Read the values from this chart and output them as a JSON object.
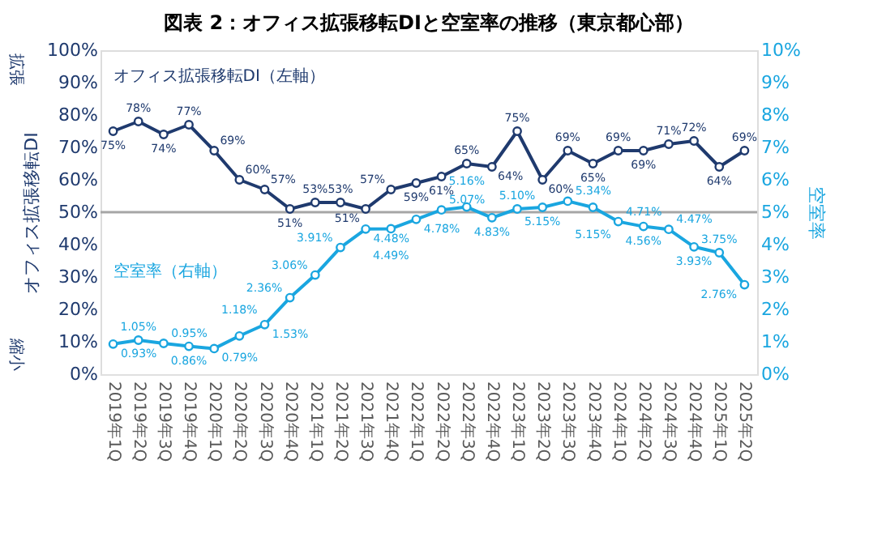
{
  "chart_data": {
    "type": "line",
    "title": "図表 2：オフィス拡張移転DIと空室率の推移（東京都心部）",
    "ylabel": "オフィス拡張移転DI",
    "y2label": "空室率",
    "annotations": [
      "拡張",
      "縮小"
    ],
    "categories": [
      "2019年1Q",
      "2019年2Q",
      "2019年3Q",
      "2019年4Q",
      "2020年1Q",
      "2020年2Q",
      "2020年3Q",
      "2020年4Q",
      "2021年1Q",
      "2021年2Q",
      "2021年3Q",
      "2021年4Q",
      "2022年1Q",
      "2022年2Q",
      "2022年3Q",
      "2022年4Q",
      "2023年1Q",
      "2023年2Q",
      "2023年3Q",
      "2023年4Q",
      "2024年1Q",
      "2024年2Q",
      "2024年3Q",
      "2024年4Q",
      "2025年1Q",
      "2025年2Q"
    ],
    "series": [
      {
        "name": "オフィス拡張移転DI（左軸）",
        "color": "#1f3a6e",
        "axis": "y",
        "values": [
          75,
          78,
          74,
          77,
          69,
          60,
          57,
          51,
          53,
          53,
          51,
          57,
          59,
          61,
          65,
          64,
          75,
          60,
          69,
          65,
          69,
          69,
          71,
          72,
          64,
          69
        ],
        "value_labels": [
          "75%",
          "78%",
          "74%",
          "77%",
          "69%",
          "60%",
          "57%",
          "51%",
          "53%",
          "53%",
          "51%",
          "57%",
          "59%",
          "61%",
          "65%",
          "64%",
          "75%",
          "60%",
          "69%",
          "65%",
          "69%",
          "69%",
          "71%",
          "72%",
          "64%",
          "69%"
        ]
      },
      {
        "name": "空室率（右軸）",
        "color": "#1aa6e0",
        "axis": "y2",
        "values": [
          0.93,
          1.05,
          0.95,
          0.86,
          0.79,
          1.18,
          1.53,
          2.36,
          3.06,
          3.91,
          4.48,
          4.49,
          4.78,
          5.07,
          5.16,
          4.83,
          5.1,
          5.15,
          5.34,
          5.15,
          4.71,
          4.56,
          4.47,
          3.93,
          3.75,
          2.76
        ],
        "value_labels": [
          "0.93%",
          "1.05%",
          "0.95%",
          "0.86%",
          "0.79%",
          "1.18%",
          "1.53%",
          "2.36%",
          "3.06%",
          "3.91%",
          "4.48%",
          "4.49%",
          "4.78%",
          "5.07%",
          "5.16%",
          "4.83%",
          "5.10%",
          "5.15%",
          "5.34%",
          "5.15%",
          "4.71%",
          "4.56%",
          "4.47%",
          "3.93%",
          "3.75%",
          "2.76%"
        ]
      }
    ],
    "ylim": [
      0,
      100
    ],
    "yticks": [
      {
        "value": 0,
        "label": "0%"
      },
      {
        "value": 10,
        "label": "10%"
      },
      {
        "value": 20,
        "label": "20%"
      },
      {
        "value": 30,
        "label": "30%"
      },
      {
        "value": 40,
        "label": "40%"
      },
      {
        "value": 50,
        "label": "50%"
      },
      {
        "value": 60,
        "label": "60%"
      },
      {
        "value": 70,
        "label": "70%"
      },
      {
        "value": 80,
        "label": "80%"
      },
      {
        "value": 90,
        "label": "90%"
      },
      {
        "value": 100,
        "label": "100%"
      }
    ],
    "y2lim": [
      0,
      10
    ],
    "y2ticks": [
      {
        "value": 0,
        "label": "0%"
      },
      {
        "value": 1,
        "label": "1%"
      },
      {
        "value": 2,
        "label": "2%"
      },
      {
        "value": 3,
        "label": "3%"
      },
      {
        "value": 4,
        "label": "4%"
      },
      {
        "value": 5,
        "label": "5%"
      },
      {
        "value": 6,
        "label": "6%"
      },
      {
        "value": 7,
        "label": "7%"
      },
      {
        "value": 8,
        "label": "8%"
      },
      {
        "value": 9,
        "label": "9%"
      },
      {
        "value": 10,
        "label": "10%"
      }
    ],
    "ref_lines": [
      {
        "axis": "y",
        "value": 50,
        "color": "#a6a6a6"
      }
    ],
    "marker": "circle",
    "line_style": "solid",
    "grid": false,
    "legend": false
  }
}
